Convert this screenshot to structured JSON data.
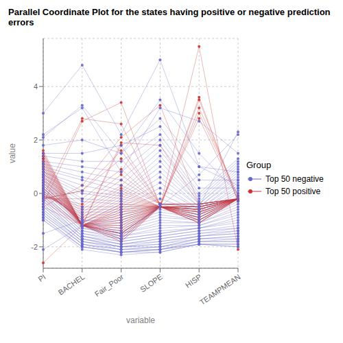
{
  "chart_data": {
    "type": "line",
    "title": "Parallel Coordinate Plot for the states having positive or negative prediction errors",
    "xlabel": "variable",
    "ylabel": "value",
    "categories": [
      "PI",
      "BACHEL",
      "Fair_Poor",
      "SLOPE",
      "HISP",
      "TEAMPMEAN"
    ],
    "ylim": [
      -2.8,
      5.8
    ],
    "yticks": [
      -2,
      0,
      2,
      4
    ],
    "grid": true,
    "legend": "right",
    "legend_title": "Group",
    "marker": "circle",
    "series": [
      {
        "name": "Top 50 negative",
        "color": "#6666CC",
        "values": [
          [
            3.0,
            4.8,
            2.2,
            5.0,
            1.0,
            0.3
          ],
          [
            2.1,
            3.3,
            1.5,
            3.5,
            1.5,
            0.0
          ],
          [
            2.2,
            3.2,
            0.8,
            3.2,
            2.7,
            1.5
          ],
          [
            1.8,
            2.0,
            1.5,
            2.8,
            1.0,
            0.8
          ],
          [
            1.5,
            1.5,
            1.8,
            2.5,
            0.5,
            0.5
          ],
          [
            1.4,
            1.2,
            1.2,
            2.2,
            0.2,
            0.2
          ],
          [
            1.2,
            1.0,
            0.8,
            2.0,
            0.0,
            1.3
          ],
          [
            1.1,
            0.8,
            0.5,
            1.8,
            -0.1,
            1.2
          ],
          [
            1.0,
            0.6,
            0.3,
            1.6,
            -0.2,
            1.1
          ],
          [
            0.9,
            0.5,
            0.1,
            1.4,
            -0.3,
            1.0
          ],
          [
            0.8,
            0.3,
            0.0,
            1.2,
            -0.4,
            0.9
          ],
          [
            0.8,
            0.1,
            -0.1,
            1.0,
            -0.4,
            0.8
          ],
          [
            0.7,
            0.0,
            -0.2,
            0.8,
            -0.5,
            0.7
          ],
          [
            0.7,
            -0.2,
            -0.3,
            0.6,
            -0.5,
            0.6
          ],
          [
            0.6,
            -0.3,
            -0.4,
            0.4,
            -0.6,
            0.5
          ],
          [
            0.6,
            -0.5,
            -0.5,
            0.2,
            -0.6,
            0.4
          ],
          [
            0.5,
            -0.6,
            -0.6,
            0.0,
            -0.7,
            0.3
          ],
          [
            0.5,
            -0.7,
            -0.7,
            -0.2,
            -0.7,
            0.2
          ],
          [
            0.4,
            -0.8,
            -0.8,
            -0.4,
            -0.8,
            0.1
          ],
          [
            0.4,
            -0.9,
            -0.9,
            -0.5,
            -0.8,
            0.0
          ],
          [
            0.3,
            -1.0,
            -1.0,
            -0.6,
            -0.9,
            -0.1
          ],
          [
            0.3,
            -1.0,
            -1.1,
            -0.7,
            -0.9,
            -0.2
          ],
          [
            0.2,
            -1.1,
            -1.2,
            -0.8,
            -1.0,
            -0.3
          ],
          [
            0.2,
            -1.1,
            -1.3,
            -0.9,
            -1.0,
            -0.4
          ],
          [
            0.1,
            -1.2,
            -1.4,
            -1.0,
            -1.1,
            -0.5
          ],
          [
            0.1,
            -1.2,
            -1.5,
            -1.1,
            -1.1,
            -0.6
          ],
          [
            0.0,
            -1.3,
            -1.5,
            -1.2,
            -1.2,
            -0.7
          ],
          [
            0.0,
            -1.3,
            -1.6,
            -1.3,
            -1.2,
            -0.8
          ],
          [
            -0.1,
            -1.4,
            -1.6,
            -1.4,
            -1.3,
            -0.9
          ],
          [
            -0.1,
            -1.4,
            -1.7,
            -1.5,
            -1.3,
            -1.0
          ],
          [
            -0.2,
            -1.5,
            -1.7,
            -1.5,
            -1.3,
            -1.1
          ],
          [
            -0.2,
            -1.5,
            -1.8,
            -1.6,
            -1.4,
            -1.2
          ],
          [
            -0.3,
            -1.6,
            -1.8,
            -1.6,
            -1.4,
            -1.3
          ],
          [
            -0.3,
            -1.6,
            -1.9,
            -1.7,
            -1.5,
            -1.3
          ],
          [
            -0.4,
            -1.6,
            -1.9,
            -1.7,
            -1.5,
            -1.4
          ],
          [
            -0.4,
            -1.7,
            -1.9,
            -1.8,
            -1.6,
            -1.4
          ],
          [
            -0.5,
            -1.7,
            -2.0,
            -1.8,
            -1.6,
            -1.5
          ],
          [
            -0.5,
            -1.7,
            -2.0,
            -1.9,
            -1.6,
            -1.5
          ],
          [
            -0.6,
            -1.8,
            -2.0,
            -1.9,
            -1.7,
            -1.6
          ],
          [
            -0.6,
            -1.8,
            -2.0,
            -2.0,
            -1.7,
            -1.6
          ],
          [
            -0.7,
            -1.8,
            -2.1,
            -2.0,
            -1.7,
            -1.7
          ],
          [
            -0.7,
            -1.9,
            -2.1,
            -2.0,
            -1.8,
            -1.7
          ],
          [
            -0.8,
            -1.9,
            -2.1,
            -2.1,
            -1.8,
            -1.8
          ],
          [
            -0.8,
            -1.9,
            -2.2,
            -2.1,
            -1.8,
            -1.8
          ],
          [
            -0.9,
            -2.0,
            -2.2,
            -2.1,
            -1.9,
            -1.9
          ],
          [
            -0.9,
            -2.0,
            -2.2,
            -2.1,
            -1.9,
            -1.9
          ],
          [
            -1.0,
            -2.0,
            -2.2,
            -2.2,
            -1.9,
            -2.0
          ],
          [
            -1.0,
            -2.1,
            -2.3,
            -2.2,
            -1.9,
            -2.0
          ],
          [
            -2.1,
            -1.2,
            -1.7,
            -0.4,
            -0.5,
            2.3
          ],
          [
            -1.5,
            -1.0,
            -1.5,
            -0.5,
            0.7,
            2.2
          ]
        ]
      },
      {
        "name": "Top 50 positive",
        "color": "#CC3333",
        "values": [
          [
            -2.6,
            -1.2,
            -1.8,
            -0.5,
            5.5,
            -2.1
          ],
          [
            -0.1,
            -1.2,
            -1.5,
            -0.5,
            3.6,
            -0.3
          ],
          [
            -0.3,
            -1.2,
            -1.5,
            -0.5,
            3.5,
            -0.3
          ],
          [
            0.2,
            -1.2,
            -1.5,
            -0.5,
            3.2,
            -0.1
          ],
          [
            -0.4,
            2.7,
            3.4,
            -0.5,
            3.0,
            -0.1
          ],
          [
            -0.1,
            2.8,
            2.6,
            -0.4,
            2.8,
            -0.2
          ],
          [
            -0.5,
            0.3,
            2.1,
            3.3,
            -0.4,
            -0.2
          ],
          [
            -0.5,
            -1.2,
            1.9,
            1.8,
            -0.4,
            -0.2
          ],
          [
            -0.2,
            -1.2,
            1.8,
            -0.4,
            -0.4,
            -0.2
          ],
          [
            -0.2,
            0.1,
            1.6,
            -0.4,
            -0.4,
            -0.2
          ],
          [
            -0.2,
            0.1,
            1.3,
            -0.4,
            -0.4,
            -0.2
          ],
          [
            -0.2,
            -0.2,
            0.9,
            -0.4,
            -0.4,
            -0.2
          ],
          [
            -0.1,
            -0.4,
            0.7,
            -0.4,
            -0.4,
            -0.2
          ],
          [
            -0.1,
            -0.5,
            0.5,
            -0.4,
            -0.4,
            -0.2
          ],
          [
            -0.1,
            -0.6,
            0.3,
            -0.4,
            -0.5,
            -0.2
          ],
          [
            -0.1,
            -0.7,
            0.2,
            -0.5,
            -0.5,
            -0.2
          ],
          [
            0.0,
            -0.8,
            0.1,
            -0.5,
            -0.5,
            -0.2
          ],
          [
            0.0,
            -0.9,
            0.0,
            -0.5,
            -0.5,
            -0.2
          ],
          [
            0.0,
            -0.9,
            -0.1,
            -0.5,
            -0.5,
            -0.2
          ],
          [
            0.1,
            -1.0,
            -0.2,
            -0.5,
            -0.5,
            -0.2
          ],
          [
            0.1,
            -1.0,
            -0.3,
            -0.5,
            -0.5,
            -0.2
          ],
          [
            0.2,
            -1.1,
            -0.4,
            -0.5,
            -0.5,
            -0.2
          ],
          [
            0.2,
            -1.1,
            -0.4,
            -0.5,
            -0.6,
            -0.2
          ],
          [
            0.3,
            -1.1,
            -0.5,
            -0.5,
            -0.6,
            -0.2
          ],
          [
            0.3,
            -1.2,
            -0.5,
            -0.5,
            -0.6,
            -0.2
          ],
          [
            0.4,
            -1.2,
            -0.6,
            -0.5,
            -0.6,
            -0.2
          ],
          [
            0.4,
            -1.2,
            -0.6,
            -0.5,
            -0.6,
            -0.2
          ],
          [
            0.5,
            -1.2,
            -0.7,
            -0.5,
            -0.6,
            -0.2
          ],
          [
            0.5,
            -1.2,
            -0.7,
            -0.5,
            -0.6,
            -0.2
          ],
          [
            0.6,
            -1.2,
            -0.8,
            -0.5,
            -0.7,
            -0.2
          ],
          [
            0.6,
            -1.2,
            -0.8,
            -0.5,
            -0.7,
            -0.2
          ],
          [
            0.7,
            -1.2,
            -0.9,
            -0.5,
            -0.7,
            -0.2
          ],
          [
            0.7,
            -1.2,
            -0.9,
            -0.5,
            -0.7,
            -0.2
          ],
          [
            0.8,
            -1.2,
            -1.0,
            -0.5,
            -0.7,
            -0.2
          ],
          [
            0.8,
            -1.2,
            -1.0,
            -0.5,
            -0.8,
            -0.2
          ],
          [
            0.9,
            -1.2,
            -1.1,
            -0.5,
            -0.8,
            -0.2
          ],
          [
            0.9,
            -1.2,
            -1.1,
            -0.5,
            -0.8,
            -0.2
          ],
          [
            1.0,
            -1.2,
            -1.2,
            -0.5,
            -0.8,
            -0.2
          ],
          [
            1.0,
            -1.2,
            -1.2,
            -0.5,
            -0.9,
            -0.2
          ],
          [
            1.1,
            -1.2,
            -1.3,
            -0.5,
            -0.9,
            -0.2
          ],
          [
            1.1,
            -1.2,
            -1.3,
            -0.5,
            -0.9,
            -0.2
          ],
          [
            1.2,
            -1.2,
            -1.4,
            -0.5,
            -0.9,
            -0.2
          ],
          [
            1.2,
            -1.2,
            -1.4,
            -0.5,
            -1.0,
            -0.2
          ],
          [
            1.3,
            -1.2,
            -1.5,
            -0.5,
            -1.0,
            -0.2
          ],
          [
            1.3,
            -1.2,
            -1.5,
            -0.5,
            -1.0,
            -0.2
          ],
          [
            1.4,
            -1.2,
            -1.6,
            -0.5,
            -1.0,
            -0.2
          ],
          [
            1.4,
            -1.2,
            -1.6,
            -0.5,
            -1.1,
            -0.2
          ],
          [
            1.5,
            -1.2,
            -1.7,
            -0.5,
            -1.1,
            -0.2
          ],
          [
            1.5,
            -1.2,
            -1.7,
            -0.5,
            -1.1,
            -0.2
          ],
          [
            1.6,
            -1.2,
            -1.8,
            -0.5,
            -1.1,
            -0.2
          ]
        ]
      }
    ]
  }
}
